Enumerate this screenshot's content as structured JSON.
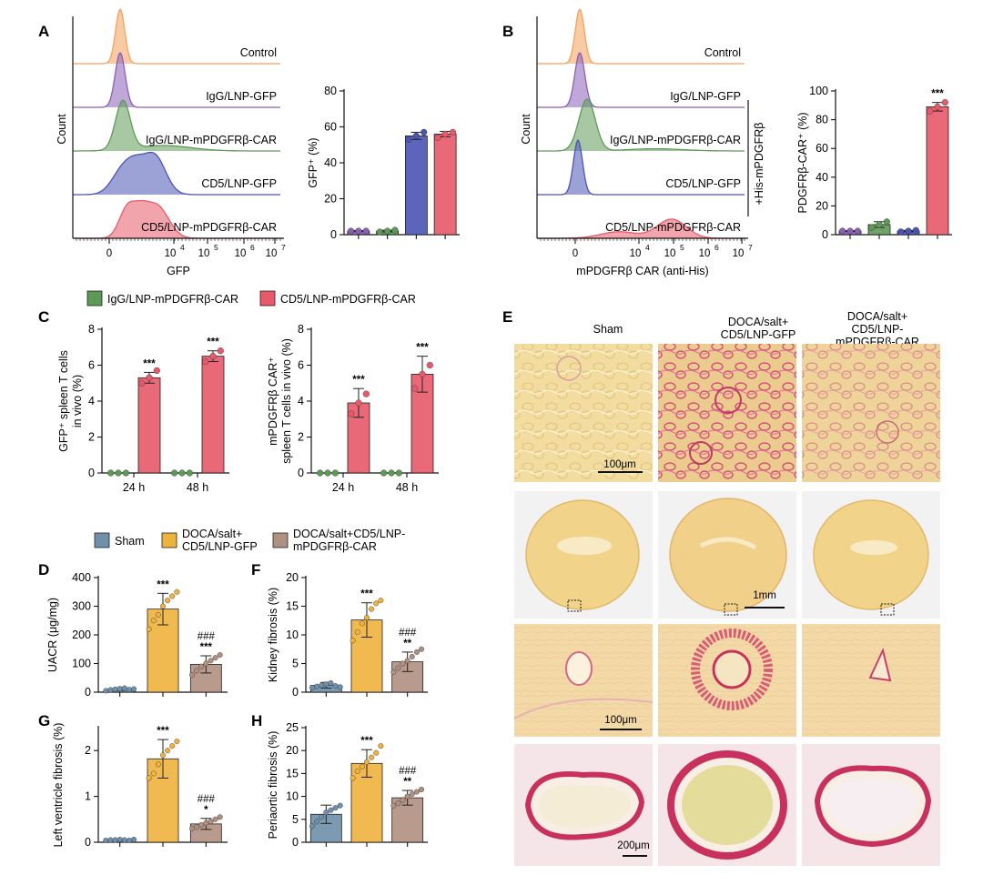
{
  "panel_letters": {
    "A": "A",
    "B": "B",
    "C": "C",
    "D": "D",
    "E": "E",
    "F": "F",
    "G": "G",
    "H": "H"
  },
  "colors": {
    "control": "#f4a15a",
    "igg_gfp": "#8a5fb8",
    "igg_car": "#5e9a57",
    "cd5_gfp": "#4b53b5",
    "cd5_car": "#e8596a",
    "sham": "#6f8fab",
    "doca_gfp": "#eeb23e",
    "doca_car": "#b09080",
    "tissue_yellow": "#f1d48a",
    "tissue_red": "#d0406a"
  },
  "flow_A": {
    "tracks": [
      "Control",
      "IgG/LNP-GFP",
      "IgG/LNP-mPDGFRβ-CAR",
      "CD5/LNP-GFP",
      "CD5/LNP-mPDGFRβ-CAR"
    ],
    "ylabel": "Count",
    "xlabel": "GFP",
    "ticks": [
      "0",
      "10",
      "10",
      "10",
      "10"
    ],
    "tick_exps": [
      "",
      "4",
      "5",
      "6",
      "7"
    ]
  },
  "flow_B": {
    "tracks": [
      "Control",
      "IgG/LNP-GFP",
      "IgG/LNP-mPDGFRβ-CAR",
      "CD5/LNP-GFP",
      "CD5/LNP-mPDGFRβ-CAR"
    ],
    "ylabel": "Count",
    "xlabel": "mPDGFRβ CAR (anti-His)",
    "bracket_label": "+His-mPDGFRβ",
    "ticks": [
      "0",
      "10",
      "10",
      "10",
      "10"
    ],
    "tick_exps": [
      "",
      "4",
      "5",
      "6",
      "7"
    ]
  },
  "legend_C": [
    "IgG/LNP-mPDGFRβ-CAR",
    "CD5/LNP-mPDGFRβ-CAR"
  ],
  "legend_D": {
    "sham": "Sham",
    "doca_gfp_1": "DOCA/salt+",
    "doca_gfp_2": "CD5/LNP-GFP",
    "doca_car_1": "DOCA/salt+CD5/LNP-",
    "doca_car_2": "mPDGFRβ-CAR"
  },
  "histology_E": {
    "col1": "Sham",
    "col2_l1": "DOCA/salt+",
    "col2_l2": "CD5/LNP-GFP",
    "col3_l1": "DOCA/salt+",
    "col3_l2": "CD5/LNP-",
    "col3_l3": "mPDGFRβ-CAR",
    "scale1": "100μm",
    "scale2": "1mm",
    "scale3": "100μm",
    "scale4": "200μm"
  },
  "chart_data": [
    {
      "id": "A_bar",
      "type": "bar",
      "ylabel": "GFP⁺ (%)",
      "ylim": [
        0,
        80
      ],
      "yticks": [
        0,
        20,
        40,
        60,
        80
      ],
      "values": [
        2,
        2,
        55,
        56
      ],
      "points": [
        [
          2,
          2,
          2
        ],
        [
          1.5,
          2,
          2.5
        ],
        [
          53,
          55,
          57
        ],
        [
          54,
          56,
          57
        ]
      ],
      "err": [
        0.3,
        0.5,
        2,
        1.5
      ],
      "sig": [
        "",
        "",
        "",
        ""
      ]
    },
    {
      "id": "B_bar",
      "type": "bar",
      "ylabel": "PDGFRβ-CAR⁺ (%)",
      "ylim": [
        0,
        100
      ],
      "yticks": [
        0,
        20,
        40,
        60,
        80,
        100
      ],
      "values": [
        2.5,
        7,
        2.5,
        89
      ],
      "points": [
        [
          2.5,
          2.5,
          2.5
        ],
        [
          5,
          7,
          9
        ],
        [
          2,
          2.5,
          3
        ],
        [
          86,
          89,
          92
        ]
      ],
      "err": [
        0.3,
        2,
        0.5,
        3
      ],
      "sig": [
        "",
        "",
        "",
        "***"
      ]
    },
    {
      "id": "C1",
      "type": "bar",
      "ylabel_l1": "GFP⁺ spleen T cells",
      "ylabel_l2": "in vivo (%)",
      "ylim": [
        0,
        8
      ],
      "yticks": [
        0,
        2,
        4,
        6,
        8
      ],
      "categories": [
        "24 h",
        "48 h"
      ],
      "series": [
        {
          "name": "IgG/LNP-mPDGFRβ-CAR",
          "values": [
            0,
            0
          ]
        },
        {
          "name": "CD5/LNP-mPDGFRβ-CAR",
          "values": [
            5.3,
            6.5
          ]
        }
      ],
      "points": [
        [
          [
            0,
            0,
            0
          ],
          [
            5.0,
            5.3,
            5.7
          ]
        ],
        [
          [
            0,
            0,
            0
          ],
          [
            6.2,
            6.5,
            6.8
          ]
        ]
      ],
      "err": [
        0.3,
        0.3
      ],
      "sig": [
        "***",
        "***"
      ]
    },
    {
      "id": "C2",
      "type": "bar",
      "ylabel_l1": "mPDGFRβ CAR⁺",
      "ylabel_l2": "spleen T cells in vivo (%)",
      "ylim": [
        0,
        8
      ],
      "yticks": [
        0,
        2,
        4,
        6,
        8
      ],
      "categories": [
        "24 h",
        "48 h"
      ],
      "series": [
        {
          "name": "IgG/LNP-mPDGFRβ-CAR",
          "values": [
            0,
            0
          ]
        },
        {
          "name": "CD5/LNP-mPDGFRβ-CAR",
          "values": [
            3.9,
            5.5
          ]
        }
      ],
      "points": [
        [
          [
            0,
            0,
            0
          ],
          [
            3.3,
            3.9,
            4.4
          ]
        ],
        [
          [
            0,
            0,
            0
          ],
          [
            4.7,
            5.5,
            6.0
          ]
        ]
      ],
      "err": [
        0.8,
        1.0
      ],
      "sig": [
        "***",
        "***"
      ]
    },
    {
      "id": "D",
      "type": "bar",
      "ylabel": "UACR (μg/mg)",
      "ylim": [
        0,
        400
      ],
      "yticks": [
        0,
        100,
        200,
        300,
        400
      ],
      "categories": [
        "Sham",
        "DOCA/salt+CD5/LNP-GFP",
        "DOCA/salt+CD5/LNP-mPDGFRβ-CAR"
      ],
      "values": [
        10,
        290,
        97
      ],
      "err": [
        4,
        55,
        30
      ],
      "points": [
        [
          5,
          8,
          10,
          12,
          14,
          9,
          11
        ],
        [
          220,
          250,
          270,
          300,
          320,
          335,
          350
        ],
        [
          60,
          75,
          90,
          100,
          110,
          120,
          130
        ]
      ],
      "sig": [
        "",
        "***",
        "###\n***"
      ]
    },
    {
      "id": "F",
      "type": "bar",
      "ylabel": "Kidney fibrosis (%)",
      "ylim": [
        0,
        20
      ],
      "yticks": [
        0,
        5,
        10,
        15,
        20
      ],
      "categories": [
        "Sham",
        "DOCA/salt+CD5/LNP-GFP",
        "DOCA/salt+CD5/LNP-mPDGFRβ-CAR"
      ],
      "values": [
        1.2,
        12.6,
        5.3
      ],
      "err": [
        0.5,
        3.0,
        1.7
      ],
      "points": [
        [
          0.8,
          1.0,
          1.2,
          1.4,
          1.6,
          1.1,
          0.9
        ],
        [
          9,
          10.5,
          12,
          13,
          14.5,
          15.5,
          16
        ],
        [
          3.5,
          4.2,
          5,
          5.5,
          6.2,
          7,
          7.5
        ]
      ],
      "sig": [
        "",
        "***",
        "###\n**"
      ]
    },
    {
      "id": "G",
      "type": "bar",
      "ylabel": "Left ventricle fibrosis (%)",
      "ylim": [
        0,
        2.5
      ],
      "yticks": [
        0,
        1,
        2
      ],
      "categories": [
        "Sham",
        "DOCA/salt+CD5/LNP-GFP",
        "DOCA/salt+CD5/LNP-mPDGFRβ-CAR"
      ],
      "values": [
        0.05,
        1.82,
        0.4
      ],
      "err": [
        0.02,
        0.42,
        0.12
      ],
      "points": [
        [
          0.04,
          0.05,
          0.05,
          0.06,
          0.05,
          0.04,
          0.06
        ],
        [
          1.4,
          1.5,
          1.7,
          1.9,
          2.0,
          2.1,
          2.2
        ],
        [
          0.3,
          0.33,
          0.38,
          0.42,
          0.45,
          0.5,
          0.55
        ]
      ],
      "sig": [
        "",
        "***",
        "###\n*"
      ]
    },
    {
      "id": "H",
      "type": "bar",
      "ylabel": "Periaortic fibrosis (%)",
      "ylim": [
        0,
        25
      ],
      "yticks": [
        0,
        5,
        10,
        15,
        20,
        25
      ],
      "categories": [
        "Sham",
        "DOCA/salt+CD5/LNP-GFP",
        "DOCA/salt+CD5/LNP-mPDGFRβ-CAR"
      ],
      "values": [
        6.1,
        17.2,
        9.7
      ],
      "err": [
        2.0,
        3.0,
        1.6
      ],
      "points": [
        [
          3.5,
          4.5,
          5.5,
          6.5,
          7,
          7.5,
          8
        ],
        [
          14,
          15.5,
          16.5,
          17.5,
          18.5,
          19.5,
          21
        ],
        [
          8,
          8.5,
          9.2,
          10,
          10.5,
          11,
          11.5
        ]
      ],
      "sig": [
        "",
        "***",
        "###\n**"
      ]
    }
  ]
}
